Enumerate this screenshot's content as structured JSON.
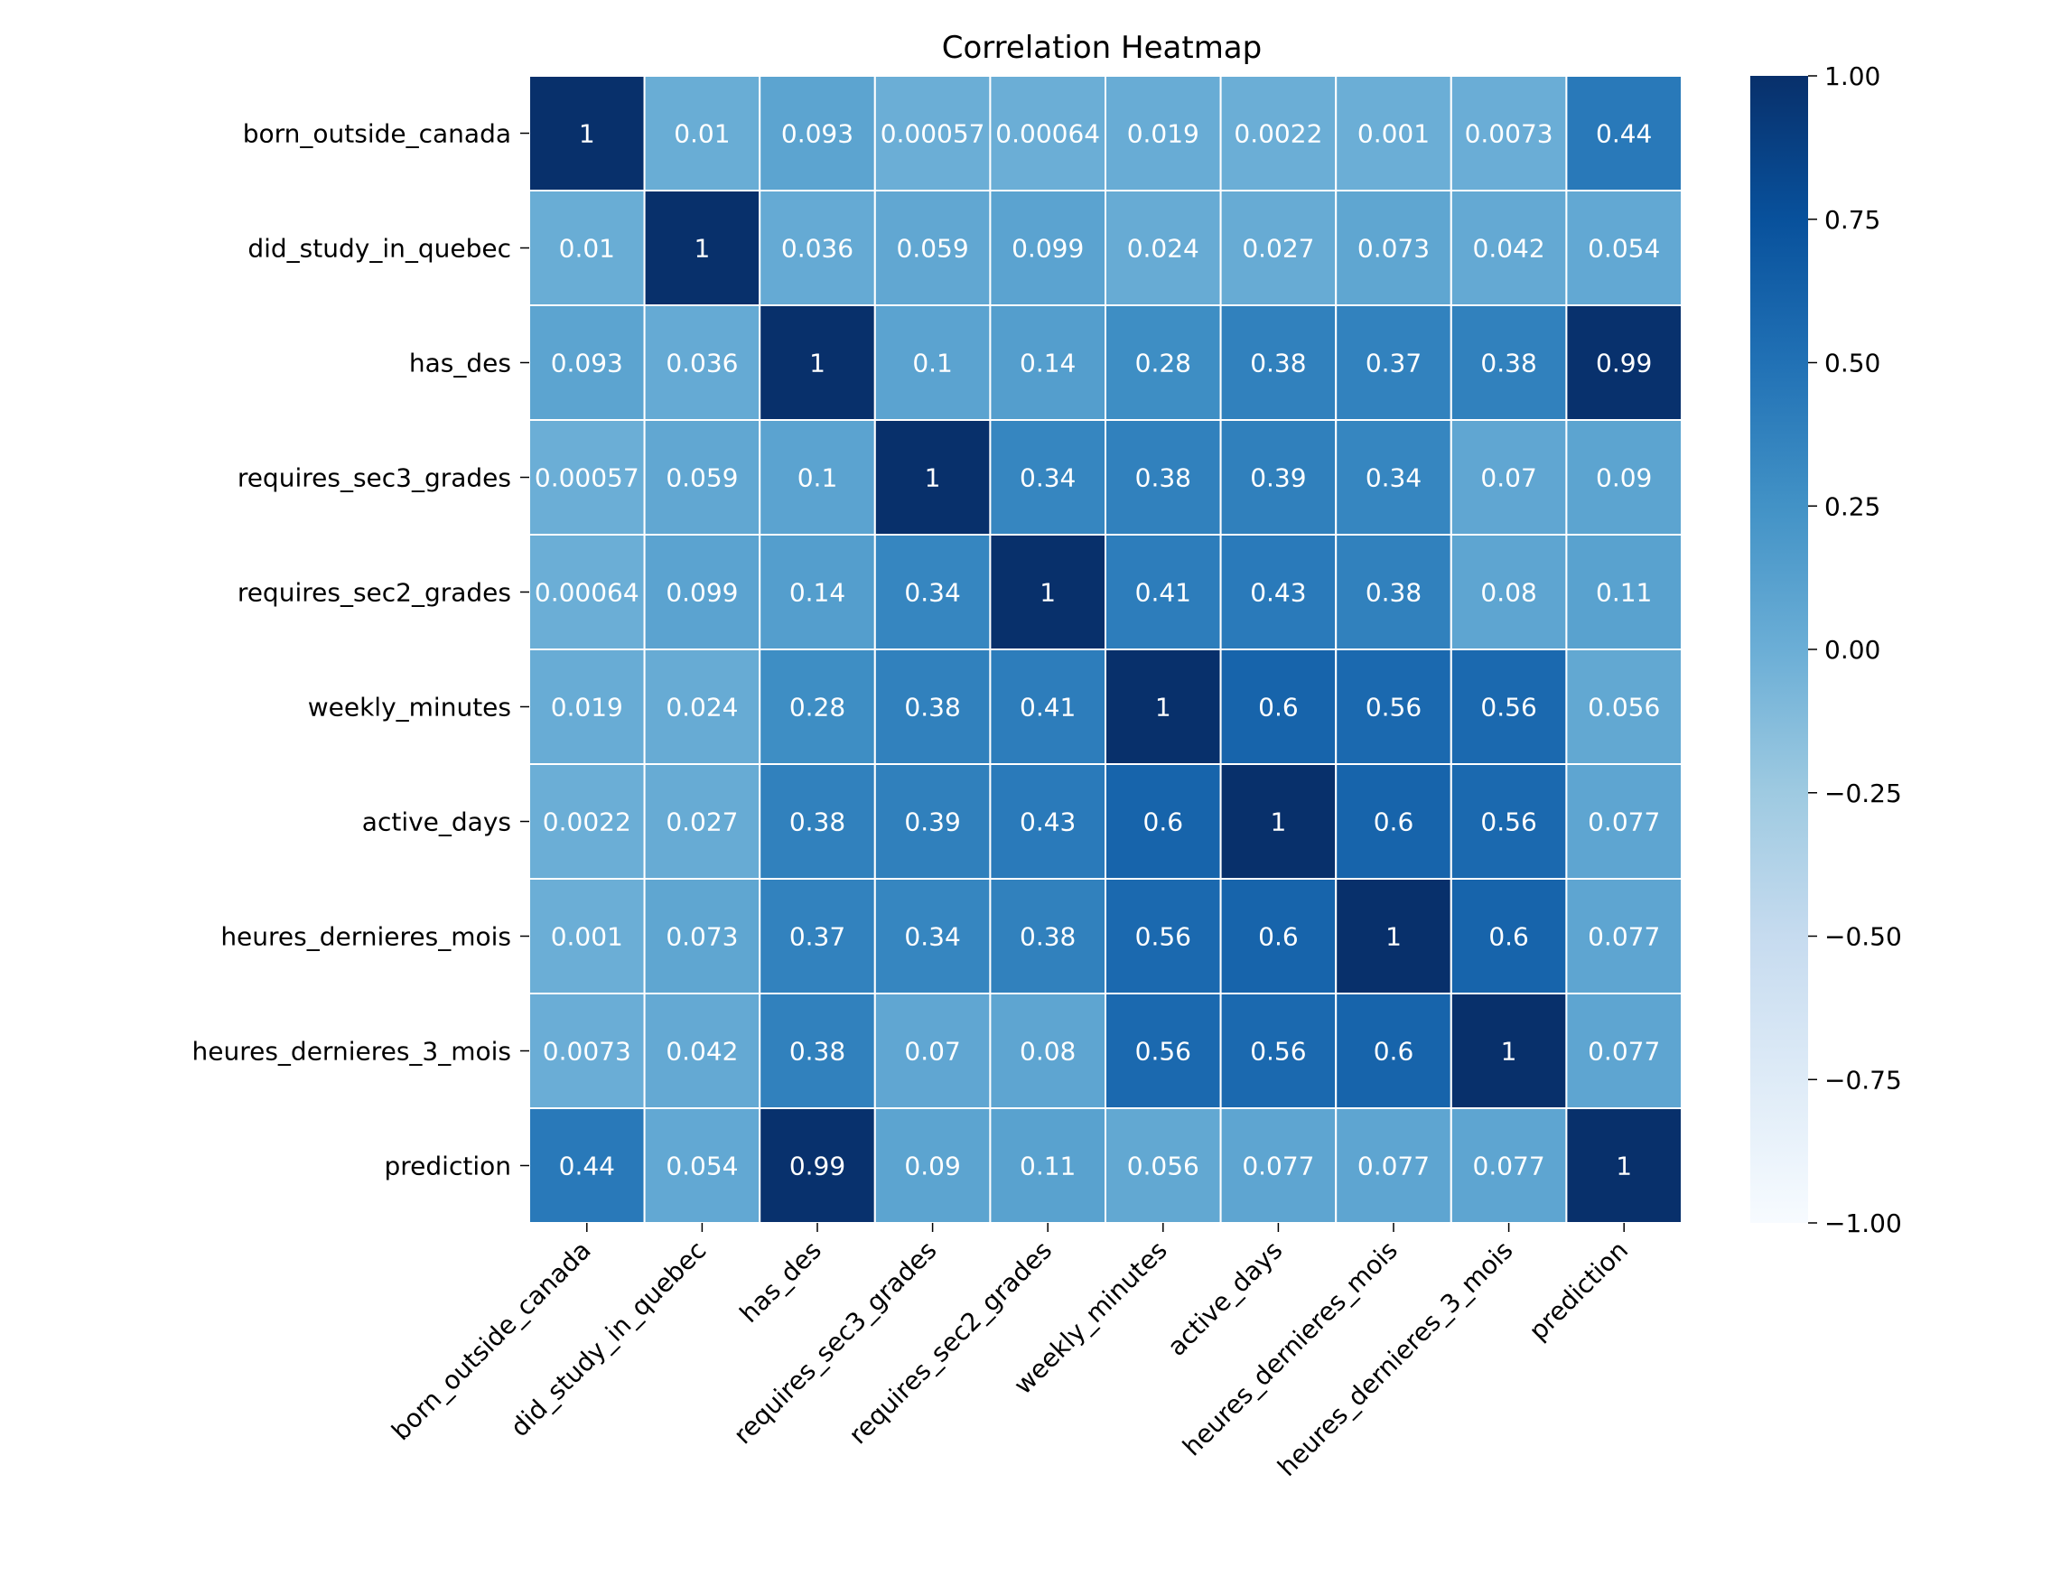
{
  "chart_data": {
    "type": "heatmap",
    "title": "Correlation Heatmap",
    "xlabel": "",
    "ylabel": "",
    "row_labels": [
      "born_outside_canada",
      "did_study_in_quebec",
      "has_des",
      "requires_sec3_grades",
      "requires_sec2_grades",
      "weekly_minutes",
      "active_days",
      "heures_dernieres_mois",
      "heures_dernieres_3_mois",
      "prediction"
    ],
    "col_labels": [
      "born_outside_canada",
      "did_study_in_quebec",
      "has_des",
      "requires_sec3_grades",
      "requires_sec2_grades",
      "weekly_minutes",
      "active_days",
      "heures_dernieres_mois",
      "heures_dernieres_3_mois",
      "prediction"
    ],
    "values": [
      [
        1,
        0.01,
        0.093,
        0.00057,
        0.00064,
        0.019,
        0.0022,
        0.001,
        0.0073,
        0.44
      ],
      [
        0.01,
        1,
        0.036,
        0.059,
        0.099,
        0.024,
        0.027,
        0.073,
        0.042,
        0.054
      ],
      [
        0.093,
        0.036,
        1,
        0.1,
        0.14,
        0.28,
        0.38,
        0.37,
        0.38,
        0.99
      ],
      [
        0.00057,
        0.059,
        0.1,
        1,
        0.34,
        0.38,
        0.39,
        0.34,
        0.07,
        0.09
      ],
      [
        0.00064,
        0.099,
        0.14,
        0.34,
        1,
        0.41,
        0.43,
        0.38,
        0.08,
        0.11
      ],
      [
        0.019,
        0.024,
        0.28,
        0.38,
        0.41,
        1,
        0.6,
        0.56,
        0.56,
        0.056
      ],
      [
        0.0022,
        0.027,
        0.38,
        0.39,
        0.43,
        0.6,
        1,
        0.6,
        0.56,
        0.077
      ],
      [
        0.001,
        0.073,
        0.37,
        0.34,
        0.38,
        0.56,
        0.6,
        1,
        0.6,
        0.077
      ],
      [
        0.0073,
        0.042,
        0.38,
        0.07,
        0.08,
        0.56,
        0.56,
        0.6,
        1,
        0.077
      ],
      [
        0.44,
        0.054,
        0.99,
        0.09,
        0.11,
        0.056,
        0.077,
        0.077,
        0.077,
        1
      ]
    ],
    "annotations": [
      [
        "1",
        "0.01",
        "0.093",
        "0.00057",
        "0.00064",
        "0.019",
        "0.0022",
        "0.001",
        "0.0073",
        "0.44"
      ],
      [
        "0.01",
        "1",
        "0.036",
        "0.059",
        "0.099",
        "0.024",
        "0.027",
        "0.073",
        "0.042",
        "0.054"
      ],
      [
        "0.093",
        "0.036",
        "1",
        "0.1",
        "0.14",
        "0.28",
        "0.38",
        "0.37",
        "0.38",
        "0.99"
      ],
      [
        "0.00057",
        "0.059",
        "0.1",
        "1",
        "0.34",
        "0.38",
        "0.39",
        "0.34",
        "0.07",
        "0.09"
      ],
      [
        "0.00064",
        "0.099",
        "0.14",
        "0.34",
        "1",
        "0.41",
        "0.43",
        "0.38",
        "0.08",
        "0.11"
      ],
      [
        "0.019",
        "0.024",
        "0.28",
        "0.38",
        "0.41",
        "1",
        "0.6",
        "0.56",
        "0.56",
        "0.056"
      ],
      [
        "0.0022",
        "0.027",
        "0.38",
        "0.39",
        "0.43",
        "0.6",
        "1",
        "0.6",
        "0.56",
        "0.077"
      ],
      [
        "0.001",
        "0.073",
        "0.37",
        "0.34",
        "0.38",
        "0.56",
        "0.6",
        "1",
        "0.6",
        "0.077"
      ],
      [
        "0.0073",
        "0.042",
        "0.38",
        "0.07",
        "0.08",
        "0.56",
        "0.56",
        "0.6",
        "1",
        "0.077"
      ],
      [
        "0.44",
        "0.054",
        "0.99",
        "0.09",
        "0.11",
        "0.056",
        "0.077",
        "0.077",
        "0.077",
        "1"
      ]
    ],
    "colormap": "Blues",
    "vmin": -1,
    "vmax": 1,
    "colorbar_ticks": [
      1.0,
      0.75,
      0.5,
      0.25,
      0.0,
      -0.25,
      -0.5,
      -0.75,
      -1.0
    ],
    "colorbar_tick_labels": [
      "1.00",
      "0.75",
      "0.50",
      "0.25",
      "0.00",
      "−0.25",
      "−0.50",
      "−0.75",
      "−1.00"
    ]
  }
}
